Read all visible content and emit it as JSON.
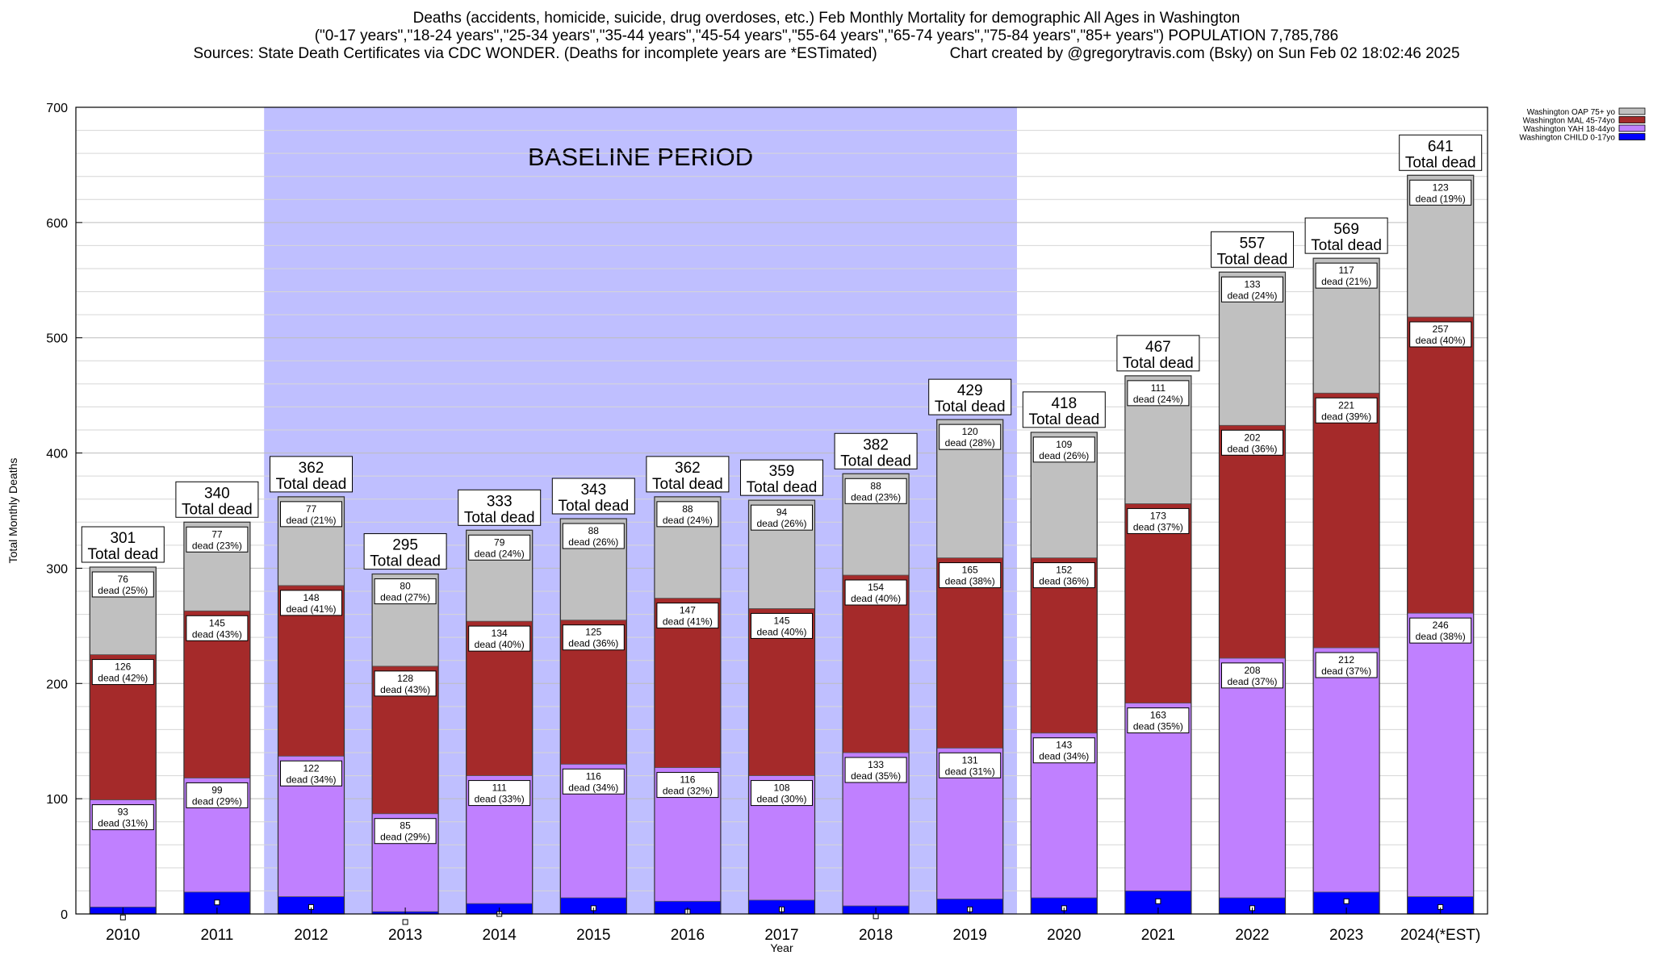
{
  "header": {
    "title": "Deaths (accidents, homicide, suicide, drug overdoses, etc.) Feb Monthly Mortality for demographic All Ages in Washington",
    "subtitle": "(\"0-17 years\",\"18-24 years\",\"25-34 years\",\"35-44 years\",\"45-54 years\",\"55-64 years\",\"65-74 years\",\"75-84 years\",\"85+ years\") POPULATION 7,785,786",
    "sources": "Sources: State Death Certificates via CDC WONDER. (Deaths for incomplete years are *ESTimated)",
    "credit": "Chart created by @gregorytravis.com (Bsky) on Sun Feb 02 18:02:46 2025"
  },
  "chart_data": {
    "type": "bar",
    "stacked": true,
    "title": "Deaths (accidents, homicide, suicide, drug overdoses, etc.) Feb Monthly Mortality for demographic All Ages in Washington",
    "xlabel": "Year",
    "ylabel": "Total Monthly Deaths",
    "ylim": [
      0,
      700
    ],
    "yticks": [
      0,
      100,
      200,
      300,
      400,
      500,
      600,
      700
    ],
    "grid": true,
    "legend_position": "top-right",
    "categories": [
      "2010",
      "2011",
      "2012",
      "2013",
      "2014",
      "2015",
      "2016",
      "2017",
      "2018",
      "2019",
      "2020",
      "2021",
      "2022",
      "2023",
      "2024(*EST)"
    ],
    "series": [
      {
        "name": "Washington CHILD 0-17yo",
        "color": "#0000ff",
        "values": [
          6,
          19,
          15,
          2,
          9,
          14,
          11,
          12,
          7,
          13,
          14,
          20,
          14,
          19,
          15
        ]
      },
      {
        "name": "Washington YAH 18-44yo",
        "color": "#c080ff",
        "values": [
          93,
          99,
          122,
          85,
          111,
          116,
          116,
          108,
          133,
          131,
          143,
          163,
          208,
          212,
          246
        ],
        "labels": [
          "dead (31%)",
          "dead (29%)",
          "dead (34%)",
          "dead (29%)",
          "dead (33%)",
          "dead (34%)",
          "dead (32%)",
          "dead (30%)",
          "dead (35%)",
          "dead (31%)",
          "dead (34%)",
          "dead (35%)",
          "dead (37%)",
          "dead (37%)",
          "dead (38%)"
        ]
      },
      {
        "name": "Washington MAL 45-74yo",
        "color": "#a52a2a",
        "values": [
          126,
          145,
          148,
          128,
          134,
          125,
          147,
          145,
          154,
          165,
          152,
          173,
          202,
          221,
          257
        ],
        "labels": [
          "dead (42%)",
          "dead (43%)",
          "dead (41%)",
          "dead (43%)",
          "dead (40%)",
          "dead (36%)",
          "dead (41%)",
          "dead (40%)",
          "dead (40%)",
          "dead (38%)",
          "dead (36%)",
          "dead (37%)",
          "dead (36%)",
          "dead (39%)",
          "dead (40%)"
        ]
      },
      {
        "name": "Washington OAP 75+ yo",
        "color": "#c0c0c0",
        "values": [
          76,
          77,
          77,
          80,
          79,
          88,
          88,
          94,
          88,
          120,
          109,
          111,
          133,
          117,
          123
        ],
        "labels": [
          "dead (25%)",
          "dead (23%)",
          "dead (21%)",
          "dead (27%)",
          "dead (24%)",
          "dead (26%)",
          "dead (24%)",
          "dead (26%)",
          "dead (23%)",
          "dead (28%)",
          "dead (26%)",
          "dead (24%)",
          "dead (24%)",
          "dead (21%)",
          "dead (19%)"
        ]
      }
    ],
    "totals": [
      301,
      340,
      362,
      295,
      333,
      343,
      362,
      359,
      382,
      429,
      418,
      467,
      557,
      569,
      641
    ],
    "total_label": "Total dead",
    "markers": [
      -3,
      10,
      6,
      -7,
      0,
      5,
      2,
      4,
      -2,
      4,
      5,
      11,
      5,
      11,
      6
    ],
    "baseline": {
      "label": "BASELINE PERIOD",
      "from": "2012",
      "to": "2019",
      "color": "#bfbfff"
    }
  }
}
